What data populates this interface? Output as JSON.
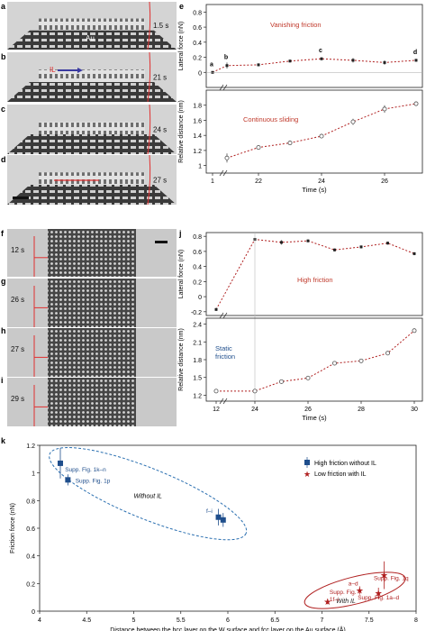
{
  "colors": {
    "red": "#c0392b",
    "blue": "#1f4e8c",
    "ellipse_blue": "#2a6fb0",
    "ellipse_red": "#b02020",
    "axis": "#222222",
    "grid": "#999999"
  },
  "panel_labels": {
    "a": "a",
    "b": "b",
    "c": "c",
    "d": "d",
    "e": "e",
    "f": "f",
    "g": "g",
    "h": "h",
    "i": "i",
    "j": "j",
    "k": "k"
  },
  "micrographs": [
    {
      "panel": "a",
      "time": "1.5 s",
      "label": "Au"
    },
    {
      "panel": "b",
      "time": "21 s",
      "label": "IL"
    },
    {
      "panel": "c",
      "time": "24 s",
      "label": ""
    },
    {
      "panel": "d",
      "time": "27 s",
      "label": ""
    },
    {
      "panel": "f",
      "time": "12 s",
      "label": ""
    },
    {
      "panel": "g",
      "time": "26 s",
      "label": ""
    },
    {
      "panel": "h",
      "time": "27 s",
      "label": ""
    },
    {
      "panel": "i",
      "time": "29 s",
      "label": ""
    }
  ],
  "chart_data": [
    {
      "id": "e-top",
      "type": "line",
      "annotation": "Vanishing friction",
      "ylabel": "Lateral force (nN)",
      "ylim": [
        -0.2,
        0.9
      ],
      "yticks": [
        0,
        0.2,
        0.4,
        0.6,
        0.8
      ],
      "x": [
        1,
        21,
        22,
        23,
        24,
        25,
        26,
        27
      ],
      "y": [
        0.0,
        0.09,
        0.1,
        0.15,
        0.18,
        0.16,
        0.13,
        0.16
      ],
      "err": [
        0.01,
        0.04,
        0.02,
        0.02,
        0.02,
        0.03,
        0.03,
        0.02
      ],
      "point_labels": [
        "a",
        "b",
        "",
        "",
        "c",
        "",
        "",
        "d"
      ]
    },
    {
      "id": "e-bottom",
      "type": "line",
      "annotation": "Continuous sliding",
      "ylabel": "Relative distance (nm)",
      "xlabel": "Time (s)",
      "ylim": [
        0.9,
        2.0
      ],
      "yticks": [
        1.0,
        1.2,
        1.4,
        1.6,
        1.8
      ],
      "xticks": [
        "1",
        "22",
        "24",
        "26"
      ],
      "x": [
        21,
        22,
        23,
        24,
        25,
        26,
        27
      ],
      "y": [
        1.1,
        1.24,
        1.3,
        1.39,
        1.58,
        1.75,
        1.82
      ],
      "err": [
        0.06,
        0.03,
        0.03,
        0.03,
        0.04,
        0.05,
        0.03
      ]
    },
    {
      "id": "j-top",
      "type": "line",
      "annotation": "High friction",
      "ylabel": "Lateral force (nN)",
      "ylim": [
        -0.25,
        0.85
      ],
      "yticks": [
        -0.2,
        0.0,
        0.2,
        0.4,
        0.6,
        0.8
      ],
      "x": [
        12,
        24,
        25,
        26,
        27,
        28,
        29,
        30
      ],
      "y": [
        -0.17,
        0.76,
        0.72,
        0.74,
        0.62,
        0.66,
        0.71,
        0.57
      ],
      "err": [
        0.02,
        0.02,
        0.03,
        0.02,
        0.02,
        0.02,
        0.02,
        0.02
      ]
    },
    {
      "id": "j-bottom",
      "type": "line",
      "annotation": "Static friction",
      "ylabel": "Relative distance (nm)",
      "xlabel": "Time (s)",
      "ylim": [
        1.1,
        2.5
      ],
      "yticks": [
        1.2,
        1.5,
        1.8,
        2.1,
        2.4
      ],
      "xticks": [
        "12",
        "24",
        "26",
        "28",
        "30"
      ],
      "x": [
        12,
        24,
        25,
        26,
        27,
        28,
        29,
        30
      ],
      "y": [
        1.27,
        1.27,
        1.43,
        1.49,
        1.74,
        1.78,
        1.91,
        2.29
      ],
      "err": [
        0.02,
        0.02,
        0.03,
        0.03,
        0.02,
        0.02,
        0.02,
        0.03
      ]
    },
    {
      "id": "k",
      "type": "scatter",
      "xlabel": "Distance between the bcc layer on the W surface  and fcc layer on the Au surface (Å)",
      "ylabel": "Friction force (nN)",
      "xlim": [
        4.0,
        8.0
      ],
      "ylim": [
        0.0,
        1.2
      ],
      "xticks": [
        4,
        4.5,
        5,
        5.5,
        6,
        6.5,
        7,
        7.5,
        8
      ],
      "yticks": [
        0,
        0.2,
        0.4,
        0.6,
        0.8,
        1.0,
        1.2
      ],
      "legend_position": "top-right",
      "series": [
        {
          "name": "High friction without IL",
          "marker": "square",
          "x": [
            4.22,
            4.3,
            5.9,
            5.95
          ],
          "y": [
            1.07,
            0.95,
            0.68,
            0.66
          ],
          "err": [
            0.11,
            0.04,
            0.06,
            0.05
          ],
          "point_labels": [
            "Supp. Fig. 1k–n",
            "Supp. Fig. 1p",
            "",
            "f–i"
          ]
        },
        {
          "name": "Low friction with IL",
          "marker": "star",
          "x": [
            7.06,
            7.4,
            7.6,
            7.66
          ],
          "y": [
            0.07,
            0.15,
            0.13,
            0.26
          ],
          "err": [
            0.02,
            0.03,
            0.04,
            0.1
          ],
          "point_labels": [
            "Supp. Fig. 1f–i",
            "a–d",
            "Supp. Fig. 1a–d",
            "Supp. Fig. 1q"
          ]
        }
      ],
      "ellipse_labels": [
        "Without IL",
        "With IL"
      ]
    }
  ]
}
